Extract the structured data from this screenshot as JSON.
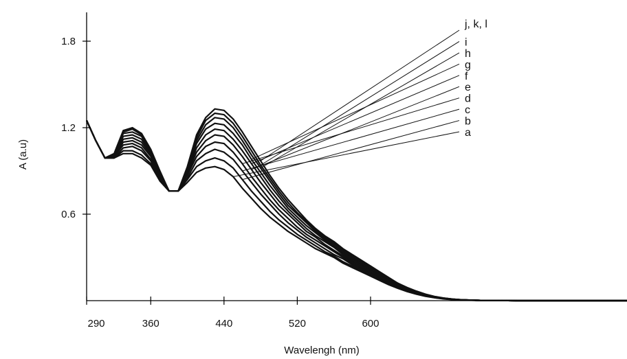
{
  "chart_data": {
    "type": "line",
    "title": "",
    "xlabel": "Wavelengh (nm)",
    "ylabel": "A (a.u)",
    "xlim": [
      290,
      880
    ],
    "ylim": [
      0,
      2.0
    ],
    "x_ticks": [
      290,
      360,
      440,
      520,
      600
    ],
    "y_ticks": [
      0.6,
      1.2,
      1.8
    ],
    "x_tick_labels": [
      "290",
      "360",
      "440",
      "520",
      "600"
    ],
    "y_tick_labels": [
      "0.6",
      "1.2",
      "1.8"
    ],
    "grid": false,
    "x": [
      290,
      300,
      310,
      320,
      330,
      340,
      350,
      360,
      370,
      380,
      390,
      400,
      410,
      420,
      430,
      440,
      450,
      460,
      470,
      480,
      490,
      500,
      510,
      520,
      530,
      540,
      550,
      560,
      570,
      580,
      590,
      600,
      610,
      620,
      630,
      640,
      650,
      660,
      670,
      680,
      690,
      700,
      720,
      740,
      760,
      780,
      800,
      820,
      840,
      860,
      880
    ],
    "series": [
      {
        "name": "a",
        "values": [
          1.25,
          1.11,
          0.99,
          0.99,
          1.02,
          1.02,
          0.99,
          0.94,
          0.83,
          0.76,
          0.76,
          0.82,
          0.89,
          0.92,
          0.93,
          0.91,
          0.86,
          0.78,
          0.71,
          0.64,
          0.58,
          0.53,
          0.48,
          0.44,
          0.4,
          0.36,
          0.33,
          0.3,
          0.26,
          0.23,
          0.2,
          0.17,
          0.14,
          0.11,
          0.085,
          0.063,
          0.045,
          0.03,
          0.02,
          0.012,
          0.007,
          0.004,
          0.002,
          0.001,
          0.0,
          0.0,
          0.0,
          0.0,
          0.0,
          0.0,
          0.0
        ]
      },
      {
        "name": "b",
        "values": [
          1.25,
          1.11,
          0.99,
          0.99,
          1.04,
          1.04,
          1.01,
          0.95,
          0.84,
          0.76,
          0.76,
          0.84,
          0.93,
          0.97,
          0.99,
          0.97,
          0.92,
          0.84,
          0.76,
          0.69,
          0.62,
          0.56,
          0.51,
          0.46,
          0.42,
          0.38,
          0.34,
          0.31,
          0.27,
          0.24,
          0.21,
          0.18,
          0.15,
          0.12,
          0.09,
          0.067,
          0.048,
          0.032,
          0.021,
          0.013,
          0.008,
          0.004,
          0.002,
          0.001,
          0.0,
          0.0,
          0.0,
          0.0,
          0.0,
          0.0,
          0.0
        ]
      },
      {
        "name": "c",
        "values": [
          1.25,
          1.11,
          0.99,
          0.99,
          1.06,
          1.07,
          1.04,
          0.97,
          0.85,
          0.76,
          0.76,
          0.85,
          0.97,
          1.02,
          1.05,
          1.03,
          0.98,
          0.9,
          0.82,
          0.74,
          0.67,
          0.6,
          0.54,
          0.49,
          0.44,
          0.4,
          0.36,
          0.32,
          0.29,
          0.25,
          0.22,
          0.19,
          0.16,
          0.12,
          0.095,
          0.07,
          0.05,
          0.034,
          0.022,
          0.014,
          0.008,
          0.005,
          0.002,
          0.001,
          0.0,
          0.0,
          0.0,
          0.0,
          0.0,
          0.0,
          0.0
        ]
      },
      {
        "name": "d",
        "values": [
          1.25,
          1.11,
          0.99,
          1.0,
          1.08,
          1.09,
          1.06,
          0.98,
          0.86,
          0.76,
          0.76,
          0.87,
          1.0,
          1.07,
          1.1,
          1.09,
          1.03,
          0.95,
          0.86,
          0.78,
          0.7,
          0.63,
          0.57,
          0.51,
          0.46,
          0.42,
          0.38,
          0.34,
          0.3,
          0.26,
          0.23,
          0.2,
          0.16,
          0.13,
          0.1,
          0.074,
          0.053,
          0.036,
          0.023,
          0.014,
          0.009,
          0.005,
          0.002,
          0.001,
          0.0,
          0.0,
          0.0,
          0.0,
          0.0,
          0.0,
          0.0
        ]
      },
      {
        "name": "e",
        "values": [
          1.25,
          1.11,
          0.99,
          1.0,
          1.1,
          1.11,
          1.08,
          1.0,
          0.87,
          0.76,
          0.76,
          0.88,
          1.03,
          1.11,
          1.15,
          1.14,
          1.08,
          1.0,
          0.91,
          0.82,
          0.74,
          0.66,
          0.6,
          0.54,
          0.48,
          0.44,
          0.39,
          0.35,
          0.31,
          0.27,
          0.24,
          0.2,
          0.17,
          0.14,
          0.105,
          0.078,
          0.056,
          0.038,
          0.024,
          0.015,
          0.009,
          0.005,
          0.002,
          0.001,
          0.0,
          0.0,
          0.0,
          0.0,
          0.0,
          0.0,
          0.0
        ]
      },
      {
        "name": "f",
        "values": [
          1.25,
          1.11,
          0.99,
          1.0,
          1.12,
          1.13,
          1.1,
          1.01,
          0.88,
          0.76,
          0.76,
          0.89,
          1.06,
          1.15,
          1.19,
          1.18,
          1.12,
          1.04,
          0.95,
          0.86,
          0.77,
          0.69,
          0.62,
          0.56,
          0.5,
          0.45,
          0.41,
          0.37,
          0.32,
          0.28,
          0.25,
          0.21,
          0.18,
          0.14,
          0.11,
          0.081,
          0.058,
          0.04,
          0.025,
          0.016,
          0.009,
          0.005,
          0.002,
          0.001,
          0.0,
          0.0,
          0.0,
          0.0,
          0.0,
          0.0,
          0.0
        ]
      },
      {
        "name": "g",
        "values": [
          1.25,
          1.11,
          0.99,
          1.01,
          1.14,
          1.15,
          1.12,
          1.02,
          0.88,
          0.76,
          0.76,
          0.9,
          1.09,
          1.19,
          1.23,
          1.22,
          1.16,
          1.08,
          0.98,
          0.89,
          0.8,
          0.72,
          0.64,
          0.58,
          0.52,
          0.47,
          0.42,
          0.38,
          0.33,
          0.29,
          0.26,
          0.22,
          0.18,
          0.15,
          0.11,
          0.084,
          0.06,
          0.041,
          0.026,
          0.016,
          0.01,
          0.005,
          0.002,
          0.001,
          0.0,
          0.0,
          0.0,
          0.0,
          0.0,
          0.0,
          0.0
        ]
      },
      {
        "name": "h",
        "values": [
          1.25,
          1.11,
          0.99,
          1.01,
          1.16,
          1.17,
          1.14,
          1.03,
          0.89,
          0.76,
          0.76,
          0.91,
          1.11,
          1.22,
          1.27,
          1.26,
          1.2,
          1.11,
          1.01,
          0.92,
          0.83,
          0.74,
          0.66,
          0.6,
          0.54,
          0.48,
          0.43,
          0.39,
          0.34,
          0.3,
          0.26,
          0.22,
          0.19,
          0.15,
          0.12,
          0.087,
          0.062,
          0.042,
          0.027,
          0.017,
          0.01,
          0.005,
          0.002,
          0.001,
          0.0,
          0.0,
          0.0,
          0.0,
          0.0,
          0.0,
          0.0
        ]
      },
      {
        "name": "i",
        "values": [
          1.25,
          1.11,
          0.99,
          1.01,
          1.17,
          1.19,
          1.15,
          1.04,
          0.89,
          0.76,
          0.76,
          0.92,
          1.13,
          1.25,
          1.3,
          1.29,
          1.23,
          1.14,
          1.04,
          0.94,
          0.85,
          0.76,
          0.68,
          0.61,
          0.55,
          0.49,
          0.44,
          0.4,
          0.35,
          0.31,
          0.27,
          0.23,
          0.19,
          0.15,
          0.12,
          0.089,
          0.064,
          0.043,
          0.028,
          0.017,
          0.01,
          0.006,
          0.002,
          0.001,
          0.0,
          0.0,
          0.0,
          0.0,
          0.0,
          0.0,
          0.0
        ]
      },
      {
        "name": "j, k, l",
        "values": [
          1.25,
          1.11,
          0.99,
          1.02,
          1.18,
          1.2,
          1.16,
          1.05,
          0.9,
          0.76,
          0.76,
          0.93,
          1.15,
          1.27,
          1.33,
          1.32,
          1.26,
          1.17,
          1.07,
          0.97,
          0.87,
          0.78,
          0.7,
          0.63,
          0.56,
          0.5,
          0.45,
          0.41,
          0.36,
          0.32,
          0.28,
          0.24,
          0.2,
          0.16,
          0.12,
          0.091,
          0.066,
          0.045,
          0.029,
          0.018,
          0.011,
          0.006,
          0.002,
          0.001,
          0.0,
          0.0,
          0.0,
          0.0,
          0.0,
          0.0,
          0.0
        ]
      }
    ],
    "legend": "leader lines to series labels, top-right"
  }
}
